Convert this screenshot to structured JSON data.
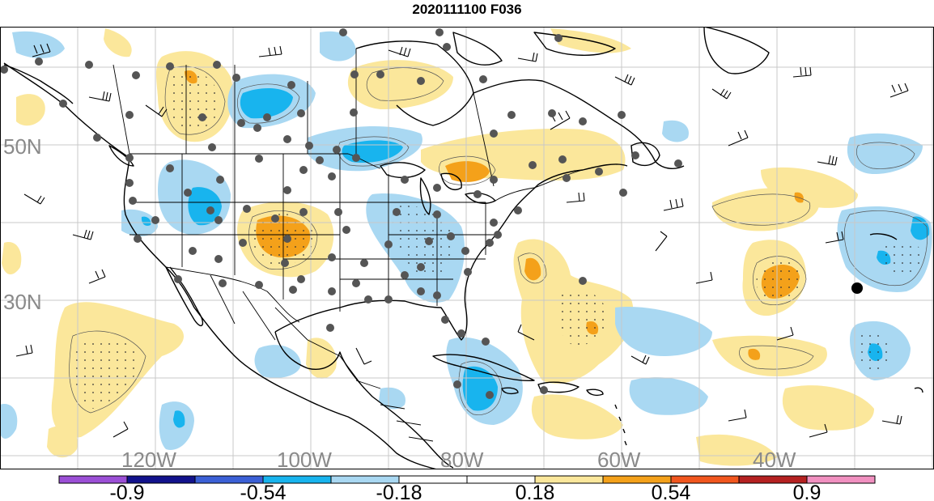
{
  "title": "2020111100 F036",
  "lat_labels": [
    "50N",
    "30N"
  ],
  "lon_labels": [
    "120W",
    "100W",
    "80W",
    "60W",
    "40W"
  ],
  "colorbar": {
    "colors": [
      "#9b4fd6",
      "#12128c",
      "#3b60d6",
      "#18b4ee",
      "#a9d8f2",
      "#ffffff",
      "#ffffff",
      "#fbe79b",
      "#f4a11a",
      "#f1561e",
      "#b52121",
      "#f190c0"
    ],
    "tick_labels": [
      "-0.9",
      "-0.54",
      "-0.18",
      "0.18",
      "0.54",
      "0.9"
    ]
  },
  "fill_colors": {
    "light_blue": "#a9d8f2",
    "blue": "#18b4ee",
    "light_yellow": "#fbe79b",
    "orange": "#f4a11a",
    "station_dot": "#555555",
    "marker": "#000000"
  }
}
